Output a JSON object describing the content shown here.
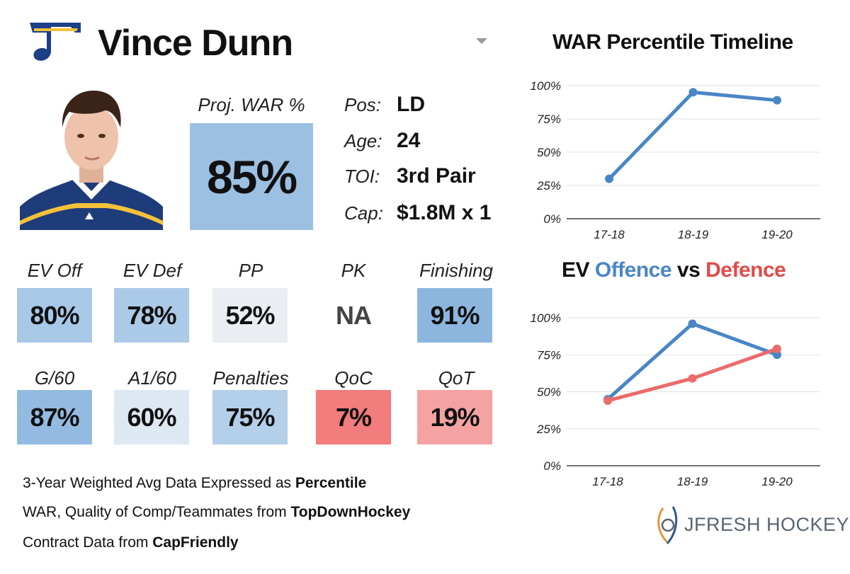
{
  "player": {
    "name": "Vince Dunn",
    "proj_war_label": "Proj. WAR %",
    "proj_war_value": "85%"
  },
  "colors": {
    "offence_blue": "#4a86c5",
    "defence_red": "#ec6b6b",
    "high_blue": "#8fb8e0",
    "light_blue": "#b3cfe9",
    "neutral": "#eaeef3",
    "low_red": "#f37c7c",
    "mid_red": "#f5a2a3"
  },
  "info": [
    {
      "label": "Pos:",
      "value": "LD"
    },
    {
      "label": "Age:",
      "value": "24"
    },
    {
      "label": "TOI:",
      "value": "3rd Pair"
    },
    {
      "label": "Cap:",
      "value": "$1.8M x 1"
    }
  ],
  "metrics_row1": [
    {
      "label": "EV Off",
      "value": "80%",
      "color": "#a7c8e7"
    },
    {
      "label": "EV Def",
      "value": "78%",
      "color": "#abcae8"
    },
    {
      "label": "PP",
      "value": "52%",
      "color": "#eaeef3"
    },
    {
      "label": "PK",
      "value": "NA",
      "color": "#ffffff"
    },
    {
      "label": "Finishing",
      "value": "91%",
      "color": "#8db6df"
    }
  ],
  "metrics_row2": [
    {
      "label": "G/60",
      "value": "87%",
      "color": "#93bbe1"
    },
    {
      "label": "A1/60",
      "value": "60%",
      "color": "#dde8f3"
    },
    {
      "label": "Penalties",
      "value": "75%",
      "color": "#b3cfe9"
    },
    {
      "label": "QoC",
      "value": "7%",
      "color": "#f37c7c"
    },
    {
      "label": "QoT",
      "value": "19%",
      "color": "#f5a2a3"
    }
  ],
  "footer": {
    "line1_prefix": "3-Year Weighted Avg Data Expressed as ",
    "line1_bold": "Percentile",
    "line2_prefix": "WAR, Quality of Comp/Teammates from ",
    "line2_bold": "TopDownHockey",
    "line3_prefix": "Contract Data from ",
    "line3_bold": "CapFriendly"
  },
  "brand": {
    "name": "JFRESH HOCKEY"
  },
  "charts_text": {
    "war_title": "WAR Percentile Timeline",
    "ev_title_1": "EV ",
    "ev_title_2": "Offence",
    "ev_title_3": " vs ",
    "ev_title_4": "Defence"
  },
  "chart_data": [
    {
      "type": "line",
      "title": "WAR Percentile Timeline",
      "categories": [
        "17-18",
        "18-19",
        "19-20"
      ],
      "yticks": [
        "0%",
        "25%",
        "50%",
        "75%",
        "100%"
      ],
      "ylim": [
        0,
        100
      ],
      "grid": true,
      "series": [
        {
          "values": [
            30,
            95,
            89
          ],
          "color": "#4a86c5"
        }
      ]
    },
    {
      "type": "line",
      "title": "EV Offence vs Defence",
      "categories": [
        "17-18",
        "18-19",
        "19-20"
      ],
      "yticks": [
        "0%",
        "25%",
        "50%",
        "75%",
        "100%"
      ],
      "ylim": [
        0,
        100
      ],
      "grid": true,
      "series": [
        {
          "name": "Offence",
          "values": [
            45,
            96,
            75
          ],
          "color": "#4a86c5"
        },
        {
          "name": "Defence",
          "values": [
            44,
            59,
            79
          ],
          "color": "#ec6b6b"
        }
      ]
    }
  ]
}
